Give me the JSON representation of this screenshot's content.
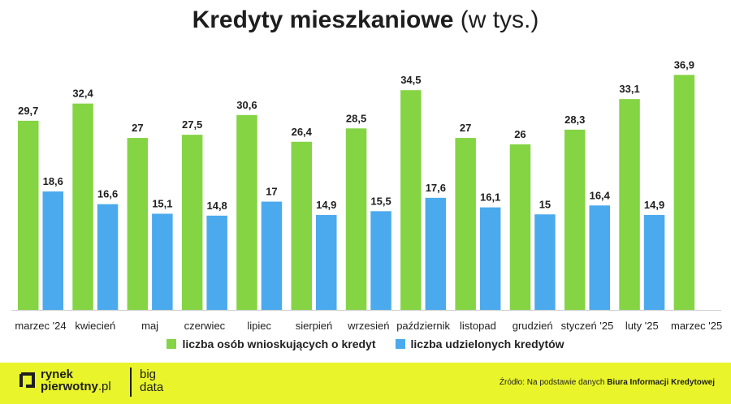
{
  "title": {
    "bold": "Kredyty mieszkaniowe",
    "normal": "(w tys.)"
  },
  "chart_data": {
    "type": "bar",
    "title": "Kredyty mieszkaniowe (w tys.)",
    "categories": [
      "marzec '24",
      "kwiecień",
      "maj",
      "czerwiec",
      "lipiec",
      "sierpień",
      "wrzesień",
      "październik",
      "listopad",
      "grudzień",
      "styczeń '25",
      "luty '25",
      "marzec '25"
    ],
    "series": [
      {
        "name": "liczba osób wnioskujących o kredyt",
        "color": "#84d444",
        "values": [
          29.7,
          32.4,
          27,
          27.5,
          30.6,
          26.4,
          28.5,
          34.5,
          27,
          26,
          28.3,
          33.1,
          36.9
        ],
        "labels": [
          "29,7",
          "32,4",
          "27",
          "27,5",
          "30,6",
          "26,4",
          "28,5",
          "34,5",
          "27",
          "26",
          "28,3",
          "33,1",
          "36,9"
        ]
      },
      {
        "name": "liczba udzielonych kredytów",
        "color": "#4baaed",
        "values": [
          18.6,
          16.6,
          15.1,
          14.8,
          17,
          14.9,
          15.5,
          17.6,
          16.1,
          15,
          16.4,
          14.9,
          null
        ],
        "labels": [
          "18,6",
          "16,6",
          "15,1",
          "14,8",
          "17",
          "14,9",
          "15,5",
          "17,6",
          "16,1",
          "15",
          "16,4",
          "14,9",
          null
        ]
      }
    ],
    "ylim": [
      0,
      40
    ],
    "grid": false,
    "legend": "bottom"
  },
  "footer": {
    "logo_line1": "rynek",
    "logo_line2_bold": "pierwotny",
    "logo_line2_thin": ".pl",
    "partner_line1": "big",
    "partner_line2": "data",
    "source_prefix": "Źródło: Na podstawie danych",
    "source_bold": "Biura Informacji Kredytowej"
  }
}
